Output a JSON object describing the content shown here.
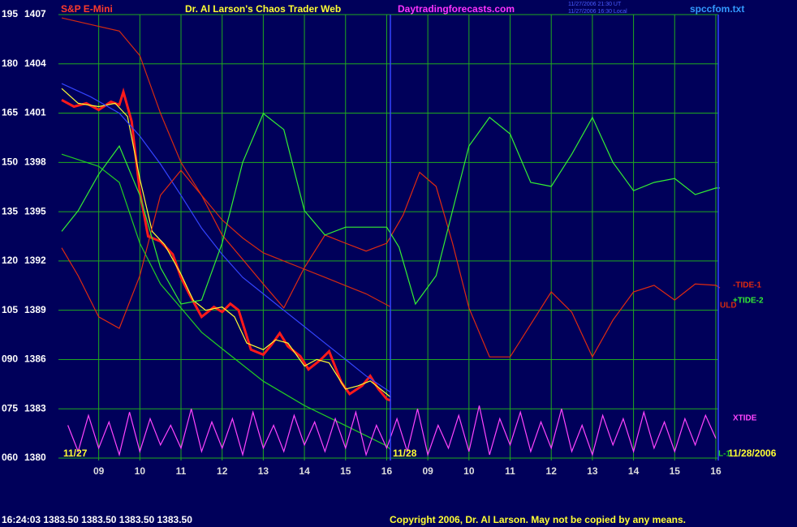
{
  "chart_data": {
    "type": "line",
    "instrument": "S&P E-Mini",
    "title": "Dr. Al Larson's Chaos Trader Web",
    "site": "Daytradingforecasts.com",
    "timestamps": [
      "11/27/2006 21:30 UT",
      "11/27/2006 16:30 Local"
    ],
    "file": "spccfom.txt",
    "date_labels": [
      "11/27",
      "11/28",
      "11/28/2006"
    ],
    "quote": "16:24:03  1383.50 1383.50 1383.50 1383.50",
    "copyright": "Copyright 2006, Dr. Al Larson. May not be copied by any means.",
    "grid": true,
    "background": "#00005a",
    "grid_color": "#1faa1f",
    "xlim": [
      8.08,
      24.06
    ],
    "xticks": [
      {
        "value": 9,
        "label": "09"
      },
      10,
      11,
      12,
      13,
      14,
      15,
      16,
      {
        "value": 17,
        "label": "09"
      },
      {
        "value": 18,
        "label": "10"
      },
      {
        "value": 19,
        "label": "11"
      },
      {
        "value": 20,
        "label": "12"
      },
      {
        "value": 21,
        "label": "13"
      },
      {
        "value": 22,
        "label": "14"
      },
      {
        "value": 23,
        "label": "15"
      },
      {
        "value": 24,
        "label": "16"
      }
    ],
    "ylim": [
      60,
      195
    ],
    "yticks": [
      {
        "value": 60,
        "label": "060"
      },
      {
        "value": 75,
        "label": "075"
      },
      {
        "value": 90,
        "label": "090"
      },
      105,
      120,
      135,
      150,
      165,
      180,
      195
    ],
    "y2lim": [
      1380,
      1407
    ],
    "y2ticks": [
      1380,
      1383,
      1386,
      1389,
      1392,
      1395,
      1398,
      1401,
      1404,
      1407
    ],
    "series": [
      {
        "color": "#ff1a1a",
        "axis": "y2",
        "x": [
          8.1,
          8.4,
          8.7,
          9.0,
          9.3,
          9.5,
          9.6,
          9.8,
          10.0,
          10.2,
          10.5,
          10.8,
          11.0,
          11.2,
          11.5,
          11.8,
          12.0,
          12.2,
          12.4,
          12.7,
          13.0,
          13.2,
          13.4,
          13.6,
          13.9,
          14.1,
          14.4,
          14.6,
          14.9,
          15.1,
          15.4,
          15.6,
          15.8,
          16.0,
          16.1
        ],
        "values": [
          1401.8,
          1401.4,
          1401.6,
          1401.2,
          1401.7,
          1401.5,
          1402.3,
          1400.5,
          1396.2,
          1393.5,
          1393.2,
          1392.4,
          1391.0,
          1390.0,
          1388.6,
          1389.2,
          1388.9,
          1389.4,
          1389.0,
          1386.6,
          1386.3,
          1386.9,
          1387.6,
          1386.8,
          1386.2,
          1385.4,
          1386.0,
          1386.5,
          1384.6,
          1383.9,
          1384.4,
          1385.0,
          1384.2,
          1383.6,
          1383.5
        ]
      },
      {
        "color": "#ffff33",
        "axis": "y2",
        "x": [
          8.1,
          8.5,
          9.0,
          9.4,
          9.7,
          10.0,
          10.3,
          10.6,
          11.0,
          11.3,
          11.6,
          12.0,
          12.3,
          12.6,
          13.0,
          13.3,
          13.6,
          14.0,
          14.3,
          14.6,
          15.0,
          15.3,
          15.6,
          16.0,
          16.1
        ],
        "values": [
          1402.5,
          1401.6,
          1401.4,
          1401.6,
          1400.8,
          1397.0,
          1393.8,
          1393.0,
          1391.2,
          1389.6,
          1389.0,
          1389.2,
          1388.6,
          1387.0,
          1386.6,
          1387.2,
          1387.0,
          1385.6,
          1386.0,
          1385.8,
          1384.2,
          1384.4,
          1384.7,
          1383.9,
          1383.7
        ]
      },
      {
        "color": "#3344ff",
        "axis": "y2",
        "x": [
          8.1,
          8.8,
          9.5,
          10.0,
          10.5,
          11.0,
          11.5,
          12.0,
          12.5,
          13.0,
          13.5,
          14.0,
          14.5,
          15.0,
          15.5,
          16.1
        ],
        "values": [
          1402.8,
          1402.0,
          1401.0,
          1399.6,
          1397.9,
          1396.0,
          1394.0,
          1392.4,
          1391.0,
          1390.0,
          1389.0,
          1388.0,
          1387.0,
          1386.0,
          1385.0,
          1384.0
        ]
      },
      {
        "name": "ULD",
        "color": "#d42a10",
        "axis": "y2",
        "x": [
          8.1,
          8.8,
          9.5,
          10.0,
          10.5,
          11.0,
          11.5,
          12.0,
          12.5,
          13.0,
          13.5,
          14.0,
          14.5,
          15.0,
          15.5,
          16.1
        ],
        "values": [
          1406.8,
          1406.4,
          1406.0,
          1404.5,
          1401.0,
          1398.0,
          1396.0,
          1394.5,
          1393.4,
          1392.5,
          1392.0,
          1391.5,
          1391.0,
          1390.5,
          1390.0,
          1389.2
        ]
      },
      {
        "name": "-TIDE-1",
        "color": "#e02a10",
        "x": [
          8.1,
          8.5,
          9.0,
          9.5,
          10.0,
          10.5,
          11.0,
          11.5,
          12.0,
          12.5,
          13.0,
          13.5,
          14.0,
          14.5,
          15.0,
          15.5,
          16.0,
          16.4,
          16.8,
          17.2,
          17.6,
          18.0,
          18.5,
          19.0,
          19.5,
          20.0,
          20.5,
          21.0,
          21.5,
          22.0,
          22.5,
          23.0,
          23.5,
          24.0,
          24.1
        ],
        "values": [
          124,
          115.5,
          103,
          99.5,
          115.5,
          140,
          147.6,
          140,
          127.9,
          120.5,
          113,
          105.7,
          118,
          127.9,
          125.4,
          123,
          125.4,
          134,
          147,
          142.7,
          125.4,
          105.7,
          90.8,
          90.8,
          100.7,
          110.6,
          104.4,
          90.8,
          102,
          110.6,
          112.6,
          108.1,
          113,
          112.6,
          111.8
        ]
      },
      {
        "name": "+TIDE-2",
        "color": "#33ee33",
        "x": [
          8.1,
          8.5,
          9.0,
          9.5,
          10.0,
          10.5,
          11.0,
          11.5,
          12.0,
          12.5,
          13.0,
          13.5,
          14.0,
          14.5,
          15.0,
          15.5,
          16.0,
          16.3,
          16.7,
          17.2,
          17.7,
          18.0,
          18.5,
          19.0,
          19.5,
          20.0,
          20.5,
          21.0,
          21.5,
          22.0,
          22.5,
          23.0,
          23.5,
          24.0,
          24.1
        ],
        "values": [
          129,
          135.3,
          146.4,
          155,
          140,
          118,
          106.9,
          108.1,
          125.4,
          150,
          164.9,
          160,
          135.3,
          127.9,
          130.3,
          130.3,
          130.3,
          124.2,
          106.9,
          115.5,
          140.2,
          155,
          163.7,
          158.7,
          143.9,
          142.7,
          152.5,
          163.7,
          150,
          141.4,
          143.9,
          145.1,
          140.2,
          142.2,
          142.2
        ]
      },
      {
        "name": "L-1",
        "color": "#22cc22",
        "x": [
          8.1,
          9.0,
          9.5,
          10.0,
          10.5,
          11.0,
          11.5,
          12.0,
          13.0,
          14.0,
          15.0,
          16.0,
          16.1
        ],
        "values": [
          152.5,
          148.8,
          143.9,
          125.4,
          113,
          105.7,
          98.3,
          93.3,
          83.4,
          76,
          69.9,
          63.7,
          62.5
        ]
      },
      {
        "name": "XTIDE",
        "color": "#ff44ff",
        "x": [
          8.25,
          8.5,
          8.75,
          9.0,
          9.25,
          9.5,
          9.75,
          10.0,
          10.25,
          10.5,
          10.75,
          11.0,
          11.25,
          11.5,
          11.75,
          12.0,
          12.25,
          12.5,
          12.75,
          13.0,
          13.25,
          13.5,
          13.75,
          14.0,
          14.25,
          14.5,
          14.75,
          15.0,
          15.25,
          15.5,
          15.75,
          16.0,
          16.25,
          16.5,
          16.75,
          17.0,
          17.25,
          17.5,
          17.75,
          18.0,
          18.25,
          18.5,
          18.75,
          19.0,
          19.25,
          19.5,
          19.75,
          20.0,
          20.25,
          20.5,
          20.75,
          21.0,
          21.25,
          21.5,
          21.75,
          22.0,
          22.25,
          22.5,
          22.75,
          23.0,
          23.25,
          23.5,
          23.75,
          24.0
        ],
        "values": [
          70,
          62,
          73,
          63,
          71,
          61,
          74,
          62,
          72,
          64,
          70,
          63,
          75,
          62,
          71,
          63,
          72,
          61,
          74,
          63,
          70,
          62,
          73,
          64,
          71,
          62,
          72,
          63,
          74,
          61,
          70,
          63,
          72,
          62,
          75,
          61,
          70,
          63,
          73,
          62,
          76,
          61,
          72,
          64,
          74,
          62,
          71,
          63,
          75,
          62,
          70,
          61,
          73,
          64,
          72,
          62,
          74,
          63,
          71,
          62,
          72,
          64,
          73,
          66
        ]
      }
    ]
  }
}
